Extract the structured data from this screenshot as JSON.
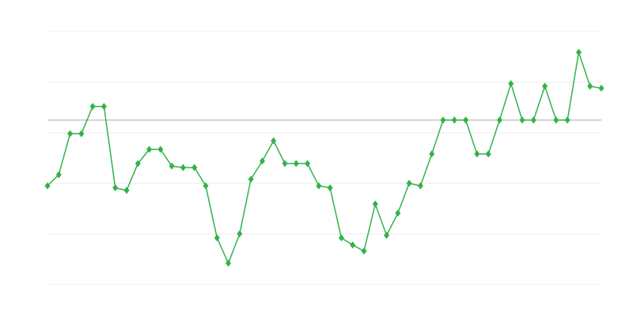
{
  "chart_data": {
    "type": "line",
    "title": "",
    "xlabel": "",
    "ylabel": "",
    "x": [
      0,
      1,
      2,
      3,
      4,
      5,
      6,
      7,
      8,
      9,
      10,
      11,
      12,
      13,
      14,
      15,
      16,
      17,
      18,
      19,
      20,
      21,
      22,
      23,
      24,
      25,
      26,
      27,
      28,
      29,
      30,
      31,
      32,
      33,
      34,
      35,
      36,
      37,
      38,
      39,
      40,
      41,
      42,
      43,
      44,
      45,
      46,
      47,
      48,
      49
    ],
    "series": [
      {
        "values": [
          1.95,
          2.17,
          2.98,
          2.98,
          3.52,
          3.52,
          1.91,
          1.86,
          2.39,
          2.67,
          2.67,
          2.34,
          2.31,
          2.31,
          1.95,
          0.92,
          0.42,
          1.0,
          2.08,
          2.44,
          2.84,
          2.39,
          2.39,
          2.39,
          1.95,
          1.91,
          0.92,
          0.78,
          0.66,
          1.59,
          0.97,
          1.41,
          2.0,
          1.95,
          2.58,
          3.25,
          3.25,
          3.25,
          2.58,
          2.58,
          3.25,
          3.97,
          3.25,
          3.25,
          3.92,
          3.25,
          3.25,
          4.59,
          3.92,
          3.88
        ],
        "color": "#33b249",
        "marker": "diamond"
      }
    ],
    "reference_line": {
      "value": 3.25,
      "color": "#aaaaaa"
    },
    "xlim": [
      0,
      49
    ],
    "ylim": [
      0,
      5
    ],
    "grid": true,
    "grid_color": "#eeeeee",
    "legend": "none"
  }
}
